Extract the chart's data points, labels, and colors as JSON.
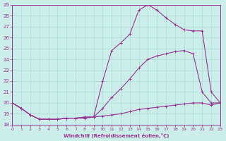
{
  "xlabel": "Windchill (Refroidissement éolien,°C)",
  "background_color": "#cceee8",
  "grid_color": "#aadddd",
  "line_color": "#993399",
  "xlim": [
    0,
    23
  ],
  "ylim": [
    18,
    29
  ],
  "xticks": [
    0,
    1,
    2,
    3,
    4,
    5,
    6,
    7,
    8,
    9,
    10,
    11,
    12,
    13,
    14,
    15,
    16,
    17,
    18,
    19,
    20,
    21,
    22,
    23
  ],
  "yticks": [
    18,
    19,
    20,
    21,
    22,
    23,
    24,
    25,
    26,
    27,
    28,
    29
  ],
  "series1_x": [
    0,
    1,
    2,
    3,
    4,
    5,
    6,
    7,
    8,
    9,
    10,
    11,
    12,
    13,
    14,
    15,
    16,
    17,
    18,
    19,
    20,
    21,
    22,
    23
  ],
  "series1_y": [
    20.0,
    19.5,
    18.9,
    18.5,
    18.5,
    18.5,
    18.6,
    18.6,
    18.6,
    18.7,
    18.8,
    18.9,
    19.0,
    19.2,
    19.4,
    19.5,
    19.6,
    19.7,
    19.8,
    19.9,
    20.0,
    20.0,
    19.8,
    20.0
  ],
  "series2_x": [
    0,
    1,
    2,
    3,
    4,
    5,
    6,
    7,
    8,
    9,
    10,
    11,
    12,
    13,
    14,
    15,
    16,
    17,
    18,
    19,
    20,
    21,
    22,
    23
  ],
  "series2_y": [
    20.0,
    19.5,
    18.9,
    18.5,
    18.5,
    18.5,
    18.6,
    18.6,
    18.7,
    18.7,
    19.5,
    20.5,
    21.3,
    22.2,
    23.2,
    24.0,
    24.3,
    24.5,
    24.7,
    24.8,
    24.5,
    21.0,
    20.0,
    20.0
  ],
  "series3_x": [
    0,
    1,
    2,
    3,
    4,
    5,
    6,
    7,
    8,
    9,
    10,
    11,
    12,
    13,
    14,
    15,
    16,
    17,
    18,
    19,
    20,
    21,
    22,
    23
  ],
  "series3_y": [
    20.0,
    19.5,
    18.9,
    18.5,
    18.5,
    18.5,
    18.6,
    18.6,
    18.7,
    18.7,
    22.0,
    24.8,
    25.5,
    26.3,
    28.5,
    29.0,
    28.5,
    27.8,
    27.2,
    26.7,
    26.6,
    26.6,
    21.0,
    20.0
  ]
}
